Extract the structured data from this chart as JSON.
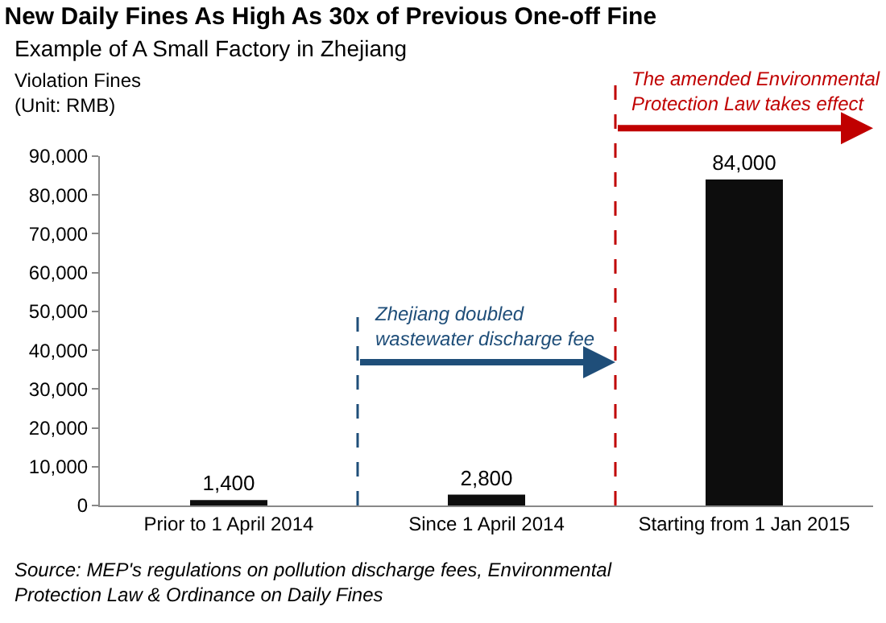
{
  "chart_data": {
    "type": "bar",
    "title": "New Daily Fines As High As 30x of Previous One-off Fine",
    "subtitle": "Example of A Small Factory in Zhejiang",
    "ylabel": "Violation Fines\n(Unit: RMB)",
    "categories": [
      "Prior to 1 April 2014",
      "Since 1 April 2014",
      "Starting from 1 Jan 2015"
    ],
    "values": [
      1400,
      2800,
      84000
    ],
    "color": "#0d0d0d",
    "value_labels": [
      "1,400",
      "2,800",
      "84,000"
    ],
    "ylim": [
      0,
      90000
    ],
    "yticks": [
      0,
      {
        "value": 10000,
        "label": "10,000"
      },
      {
        "value": 20000,
        "label": "20,000"
      },
      {
        "value": 30000,
        "label": "30,000"
      },
      {
        "value": 40000,
        "label": "40,000"
      },
      {
        "value": 50000,
        "label": "50,000"
      },
      {
        "value": 60000,
        "label": "60,000"
      },
      {
        "value": 70000,
        "label": "70,000"
      },
      {
        "value": 80000,
        "label": "80,000"
      },
      {
        "value": 90000,
        "label": "90,000"
      }
    ],
    "grid": false,
    "ref_lines": [
      {
        "axis": "x",
        "value": "Since 1 April 2014",
        "label": "Zhejiang doubled\nwastewater discharge fee",
        "color": "#1f4e79",
        "line_style": "dashed"
      },
      {
        "axis": "x",
        "value": "Starting from 1 Jan 2015",
        "label": "The amended Environmental\nProtection Law takes effect",
        "color": "#c00000",
        "line_style": "dashed"
      }
    ],
    "annotations": [
      "Source: MEP's regulations on pollution discharge fees, Environmental\nProtection Law & Ordinance on Daily Fines"
    ]
  }
}
